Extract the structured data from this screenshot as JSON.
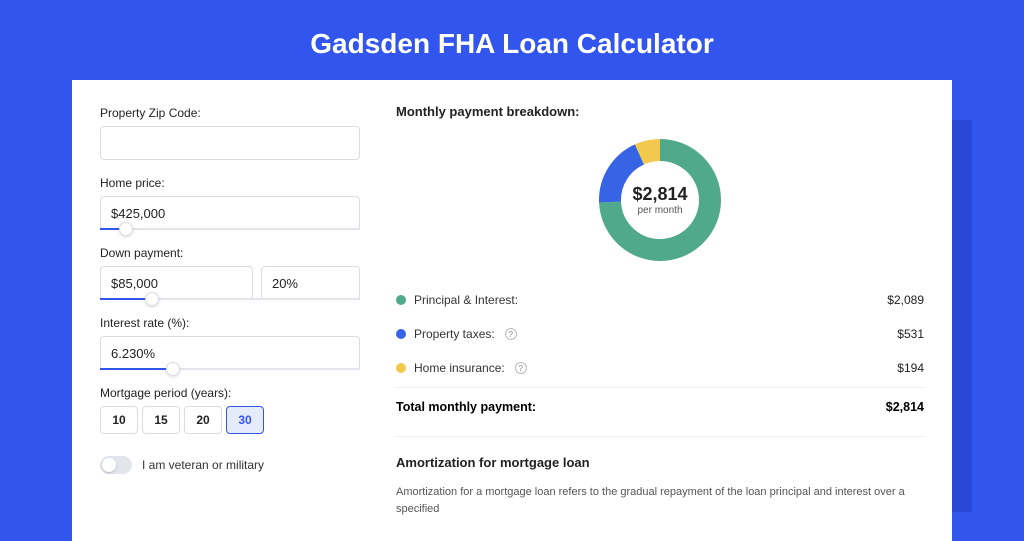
{
  "colors": {
    "page_bg": "#3155ed",
    "card_bg": "#ffffff",
    "text": "#222222",
    "border": "#d9dde3"
  },
  "title": "Gadsden FHA Loan Calculator",
  "form": {
    "zip": {
      "label": "Property Zip Code:",
      "value": ""
    },
    "home_price": {
      "label": "Home price:",
      "value": "$425,000",
      "slider_pct": 10
    },
    "down_payment": {
      "label": "Down payment:",
      "value": "$85,000",
      "pct_value": "20%",
      "slider_pct": 20
    },
    "interest_rate": {
      "label": "Interest rate (%):",
      "value": "6.230%",
      "slider_pct": 28
    },
    "period": {
      "label": "Mortgage period (years):",
      "options": [
        "10",
        "15",
        "20",
        "30"
      ],
      "selected": "30"
    },
    "veteran": {
      "label": "I am veteran or military",
      "checked": false
    }
  },
  "breakdown": {
    "header": "Monthly payment breakdown:",
    "donut": {
      "value_display": "$2,814",
      "sub": "per month",
      "radius": 50,
      "stroke_width": 22,
      "segments": [
        {
          "key": "pi",
          "color": "#4fa98a",
          "pct": 74.2
        },
        {
          "key": "tax",
          "color": "#3764e5",
          "pct": 18.9
        },
        {
          "key": "ins",
          "color": "#f2c94c",
          "pct": 6.9
        }
      ]
    },
    "items": [
      {
        "label": "Principal & Interest:",
        "value": "$2,089",
        "color": "#4fa98a",
        "help": false
      },
      {
        "label": "Property taxes:",
        "value": "$531",
        "color": "#3764e5",
        "help": true
      },
      {
        "label": "Home insurance:",
        "value": "$194",
        "color": "#f2c94c",
        "help": true
      }
    ],
    "total": {
      "label": "Total monthly payment:",
      "value": "$2,814"
    }
  },
  "amortization": {
    "header": "Amortization for mortgage loan",
    "desc": "Amortization for a mortgage loan refers to the gradual repayment of the loan principal and interest over a specified"
  }
}
